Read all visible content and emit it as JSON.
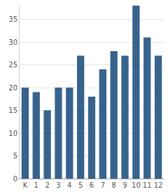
{
  "chart_data": {
    "type": "bar",
    "categories": [
      "K",
      "1",
      "2",
      "3",
      "4",
      "5",
      "6",
      "7",
      "8",
      "9",
      "10",
      "11",
      "12"
    ],
    "values": [
      20,
      19,
      15,
      20,
      20,
      27,
      18,
      24,
      28,
      27,
      38,
      31,
      27
    ],
    "color": "#37638c",
    "ylim": [
      0,
      38
    ],
    "yticks": [
      0,
      5,
      10,
      15,
      20,
      25,
      30,
      35
    ],
    "grid": true
  }
}
